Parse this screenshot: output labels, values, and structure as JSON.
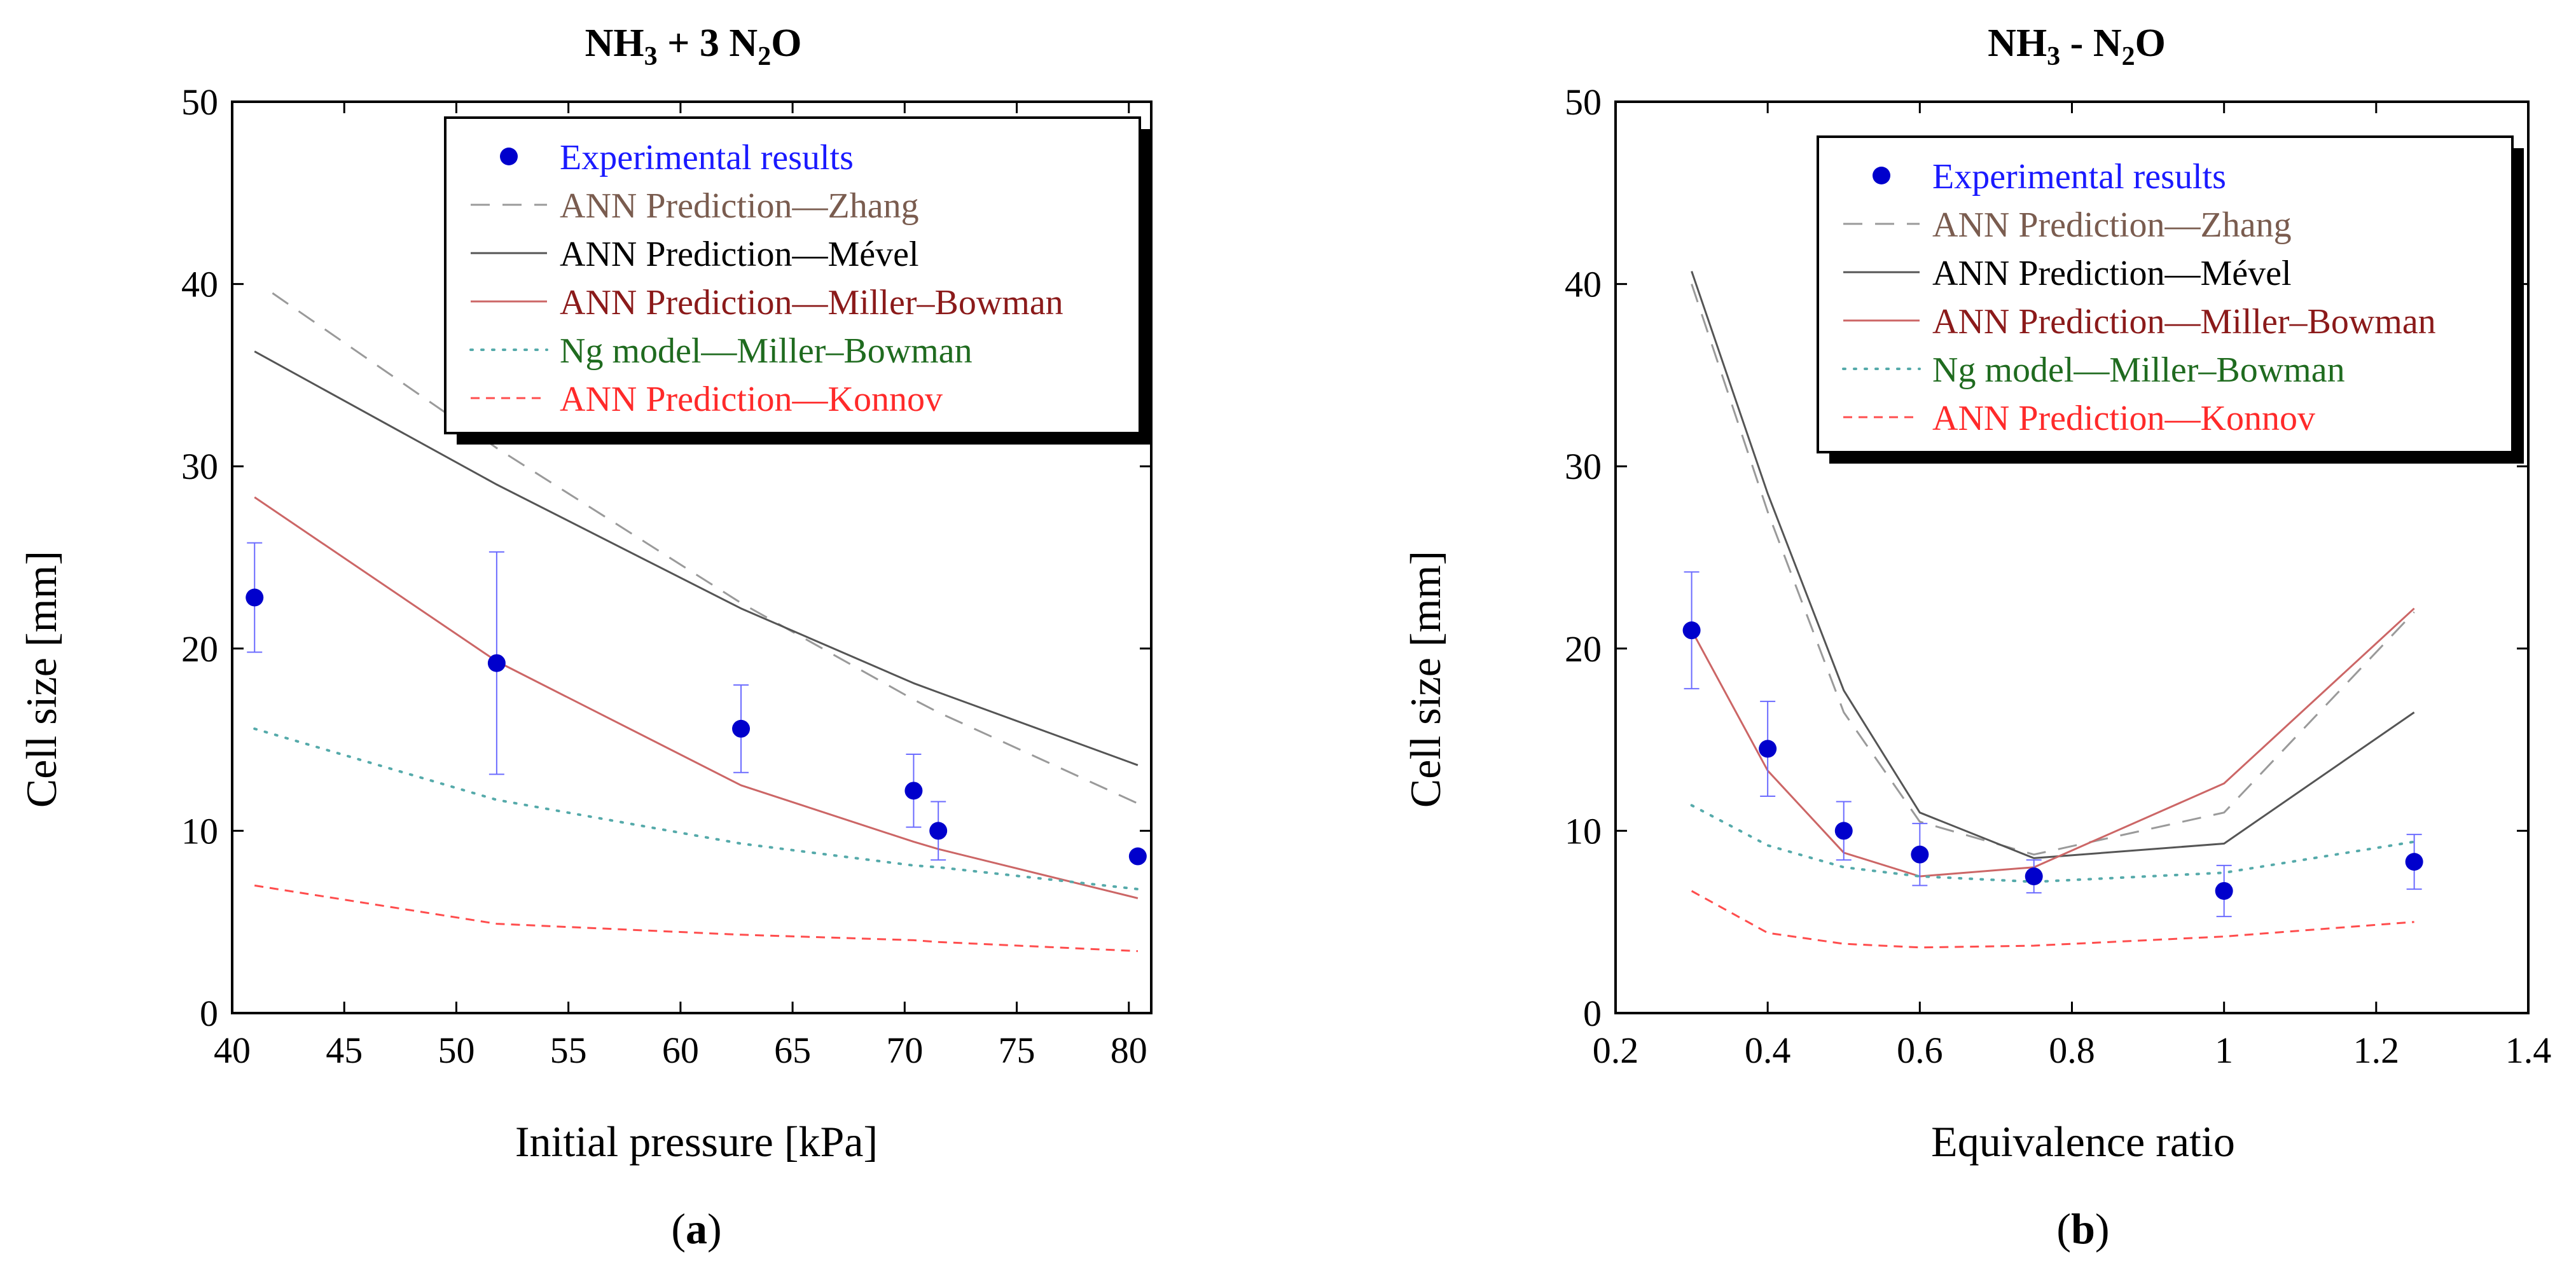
{
  "colors": {
    "experimental": "#0000cc",
    "zhang": "#9a9a9a",
    "mevel": "#555555",
    "miller_bowman": "#cc6666",
    "ng": "#55aaaa",
    "konnov": "#ff4d4d",
    "legend_zhang_text": "#7a5c4f",
    "legend_miller_text": "#8b1a1a",
    "legend_ng_text": "#1f6b1f",
    "legend_konnov_text": "#ff2a2a",
    "legend_exp_text": "#1a1aff"
  },
  "chart_data": [
    {
      "type": "line",
      "panel_label": "a",
      "title": "NH3 + 3 N2O",
      "title_parts": {
        "a": "NH",
        "b": "3",
        "c": " + 3 N",
        "d": "2",
        "e": "O"
      },
      "xlabel": "Initial pressure [kPa]",
      "ylabel": "Cell size [mm]",
      "xlim": [
        40,
        81
      ],
      "ylim": [
        0,
        50
      ],
      "xticks": [
        40,
        45,
        50,
        55,
        60,
        65,
        70,
        75,
        80
      ],
      "xtick_labels": [
        "40",
        "45",
        "50",
        "55",
        "60",
        "65",
        "70",
        "75",
        "80"
      ],
      "yticks": [
        0,
        10,
        20,
        30,
        40,
        50
      ],
      "ytick_labels": [
        "0",
        "10",
        "20",
        "30",
        "40",
        "50"
      ],
      "grid": false,
      "legend_position": "top-right",
      "legend": [
        "Experimental results",
        "ANN Prediction—Zhang",
        "ANN Prediction—Mével",
        "ANN Prediction—Miller–Bowman",
        "Ng model—Miller–Bowman",
        "ANN Prediction—Konnov"
      ],
      "experimental": {
        "x": [
          41.0,
          51.8,
          62.7,
          70.4,
          71.5,
          80.4
        ],
        "y": [
          22.8,
          19.2,
          15.6,
          12.2,
          10.0,
          8.6
        ],
        "err": [
          3.0,
          6.1,
          2.4,
          2.0,
          1.6,
          0.0
        ]
      },
      "series": [
        {
          "name": "ANN Prediction—Zhang",
          "style": "longdash",
          "x": [
            41.8,
            51.8,
            62.7,
            70.4,
            71.5,
            80.4
          ],
          "y": [
            39.5,
            31.0,
            22.5,
            17.2,
            16.5,
            11.5
          ]
        },
        {
          "name": "ANN Prediction—Mével",
          "style": "solid",
          "x": [
            41.0,
            51.8,
            62.7,
            70.4,
            71.5,
            80.4
          ],
          "y": [
            36.3,
            29.0,
            22.2,
            18.1,
            17.6,
            13.6
          ]
        },
        {
          "name": "ANN Prediction—Miller–Bowman",
          "style": "solid",
          "x": [
            41.0,
            51.8,
            62.7,
            70.4,
            71.5,
            80.4
          ],
          "y": [
            28.3,
            19.3,
            12.5,
            9.4,
            9.0,
            6.3
          ]
        },
        {
          "name": "Ng model—Miller–Bowman",
          "style": "dotted",
          "x": [
            41.0,
            51.8,
            62.7,
            70.4,
            71.5,
            80.4
          ],
          "y": [
            15.6,
            11.7,
            9.3,
            8.1,
            8.0,
            6.8
          ]
        },
        {
          "name": "ANN Prediction—Konnov",
          "style": "shortdash",
          "x": [
            41.0,
            51.8,
            62.7,
            70.4,
            71.5,
            80.4
          ],
          "y": [
            7.0,
            4.9,
            4.3,
            4.0,
            3.9,
            3.4
          ]
        }
      ]
    },
    {
      "type": "line",
      "panel_label": "b",
      "title": "NH3 - N2O",
      "title_parts": {
        "a": "NH",
        "b": "3",
        "c": " - N",
        "d": "2",
        "e": "O"
      },
      "xlabel": "Equivalence ratio",
      "ylabel": "Cell size [mm]",
      "xlim": [
        0.2,
        1.4
      ],
      "ylim": [
        0,
        50
      ],
      "xticks": [
        0.2,
        0.4,
        0.6,
        0.8,
        1.0,
        1.2,
        1.4
      ],
      "xtick_labels": [
        "0.2",
        "0.4",
        "0.6",
        "0.8",
        "1",
        "1.2",
        "1.4"
      ],
      "yticks": [
        0,
        10,
        20,
        30,
        40,
        50
      ],
      "ytick_labels": [
        "0",
        "10",
        "20",
        "30",
        "40",
        "50"
      ],
      "grid": false,
      "legend_position": "top-right",
      "legend": [
        "Experimental results",
        "ANN Prediction—Zhang",
        "ANN Prediction—Mével",
        "ANN Prediction—Miller–Bowman",
        "Ng model—Miller–Bowman",
        "ANN Prediction—Konnov"
      ],
      "experimental": {
        "x": [
          0.3,
          0.4,
          0.5,
          0.6,
          0.75,
          1.0,
          1.25
        ],
        "y": [
          21.0,
          14.5,
          10.0,
          8.7,
          7.5,
          6.7,
          8.3
        ],
        "err": [
          3.2,
          2.6,
          1.6,
          1.7,
          0.9,
          1.4,
          1.5
        ]
      },
      "series": [
        {
          "name": "ANN Prediction—Zhang",
          "style": "longdash",
          "x": [
            0.3,
            0.4,
            0.5,
            0.6,
            0.75,
            1.0,
            1.25
          ],
          "y": [
            40.0,
            27.5,
            16.5,
            10.5,
            8.7,
            11.0,
            22.0
          ]
        },
        {
          "name": "ANN Prediction—Mével",
          "style": "solid",
          "x": [
            0.3,
            0.4,
            0.5,
            0.6,
            0.75,
            1.0,
            1.25
          ],
          "y": [
            40.7,
            28.5,
            17.7,
            11.0,
            8.5,
            9.3,
            16.5
          ]
        },
        {
          "name": "ANN Prediction—Miller–Bowman",
          "style": "solid",
          "x": [
            0.3,
            0.4,
            0.5,
            0.6,
            0.75,
            1.0,
            1.25
          ],
          "y": [
            21.0,
            13.3,
            8.8,
            7.5,
            8.0,
            12.6,
            22.2
          ]
        },
        {
          "name": "Ng model—Miller–Bowman",
          "style": "dotted",
          "x": [
            0.3,
            0.4,
            0.5,
            0.6,
            0.75,
            1.0,
            1.25
          ],
          "y": [
            11.4,
            9.2,
            8.0,
            7.5,
            7.2,
            7.7,
            9.4
          ]
        },
        {
          "name": "ANN Prediction—Konnov",
          "style": "shortdash",
          "x": [
            0.3,
            0.4,
            0.5,
            0.6,
            0.75,
            1.0,
            1.25
          ],
          "y": [
            6.7,
            4.4,
            3.8,
            3.6,
            3.7,
            4.2,
            5.0
          ]
        }
      ]
    }
  ]
}
